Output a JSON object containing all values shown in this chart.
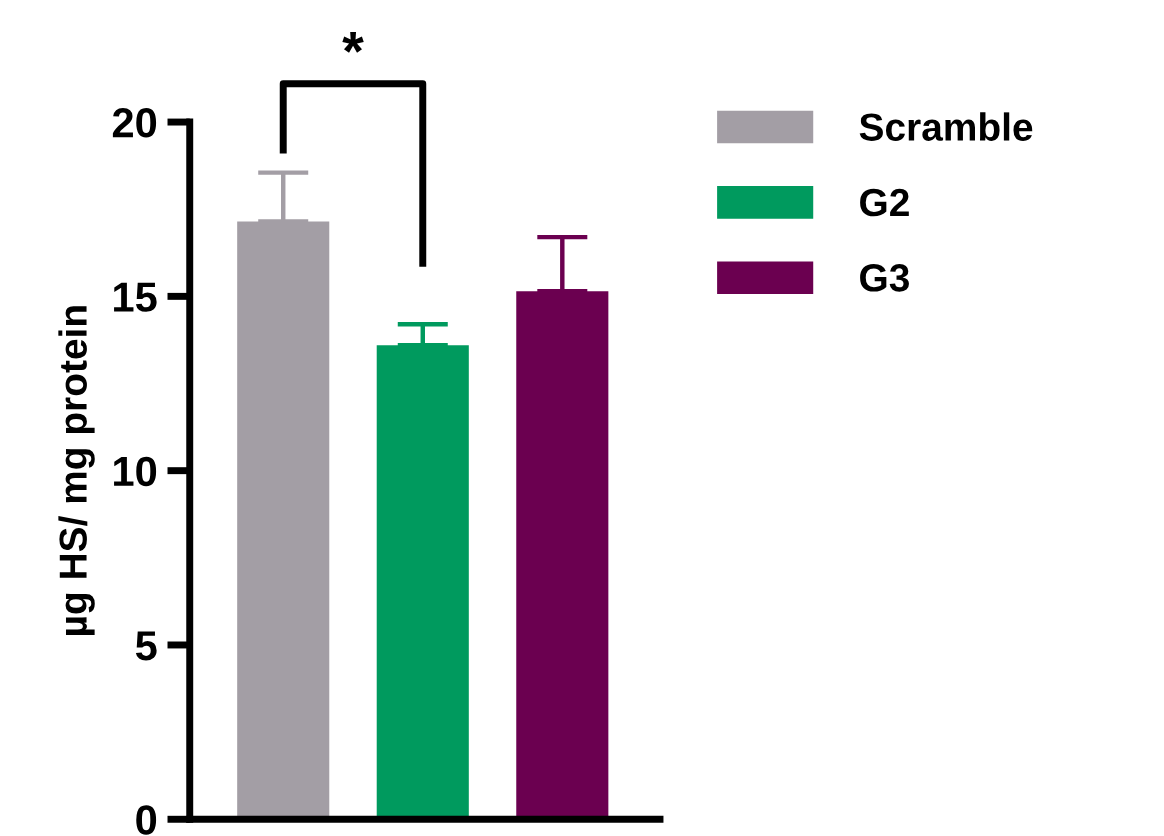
{
  "chart_data": {
    "type": "bar",
    "ylabel": "µg HS/ mg protein",
    "categories": [
      null,
      null,
      null
    ],
    "series": [
      {
        "name": "Scramble",
        "color": "#a39ea5",
        "values": [
          17.15,
          null,
          null
        ],
        "errors": [
          [
            17.15,
            18.55
          ],
          null,
          null
        ]
      },
      {
        "name": "G2",
        "color": "#009a5e",
        "values": [
          null,
          13.6,
          null
        ],
        "errors": [
          null,
          [
            13.6,
            14.2
          ],
          null
        ]
      },
      {
        "name": "G3",
        "color": "#6b0050",
        "values": [
          null,
          null,
          15.15
        ],
        "errors": [
          null,
          null,
          [
            15.15,
            16.7
          ]
        ]
      }
    ],
    "ylim": [
      0,
      20
    ],
    "yticks": [
      0,
      5,
      10,
      15,
      20
    ],
    "grid": false,
    "legend": "right",
    "annotations": [
      "*"
    ]
  }
}
